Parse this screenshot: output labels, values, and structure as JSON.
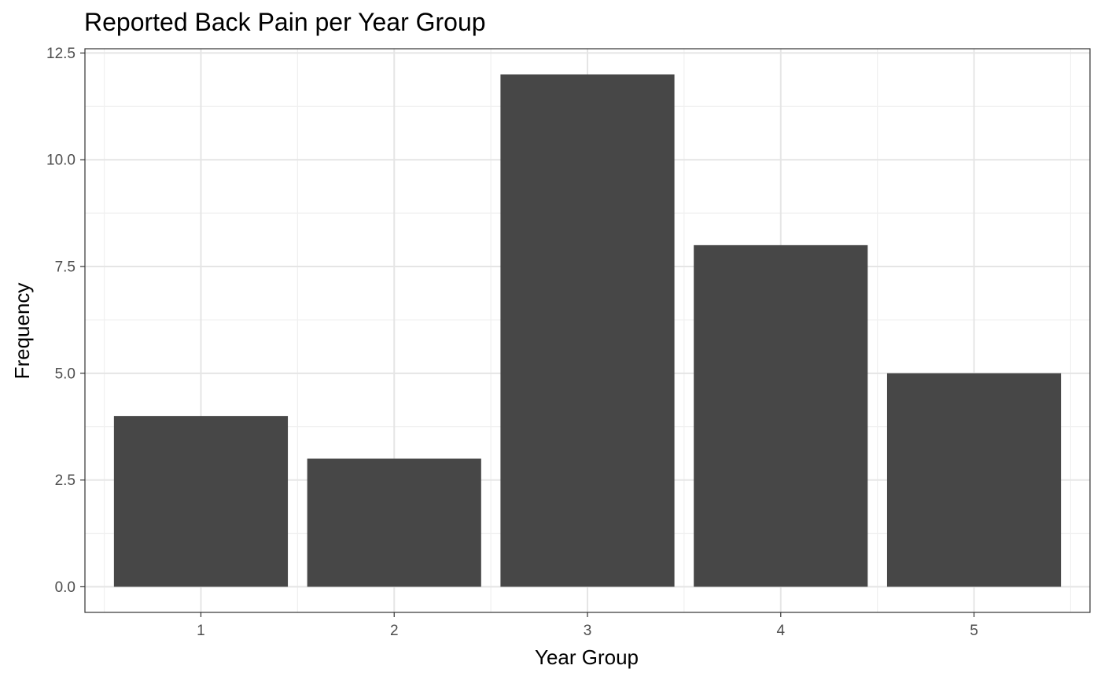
{
  "chart_data": {
    "type": "bar",
    "title": "Reported Back Pain per Year Group",
    "xlabel": "Year Group",
    "ylabel": "Frequency",
    "categories": [
      "1",
      "2",
      "3",
      "4",
      "5"
    ],
    "values": [
      4,
      3,
      12,
      8,
      5
    ],
    "ylim": [
      -0.6,
      12.6
    ],
    "y_ticks": [
      0,
      2.5,
      5,
      7.5,
      10,
      12.5
    ],
    "y_tick_labels": [
      "0.0",
      "2.5",
      "5.0",
      "7.5",
      "10.0",
      "12.5"
    ],
    "grid": true,
    "legend": "none",
    "colors": {
      "bar": "#474747",
      "panel_border": "#333333",
      "grid_major": "#e5e5e5",
      "grid_minor": "#f0f0f0",
      "tick_label": "#4d4d4d",
      "background": "#ffffff"
    }
  }
}
